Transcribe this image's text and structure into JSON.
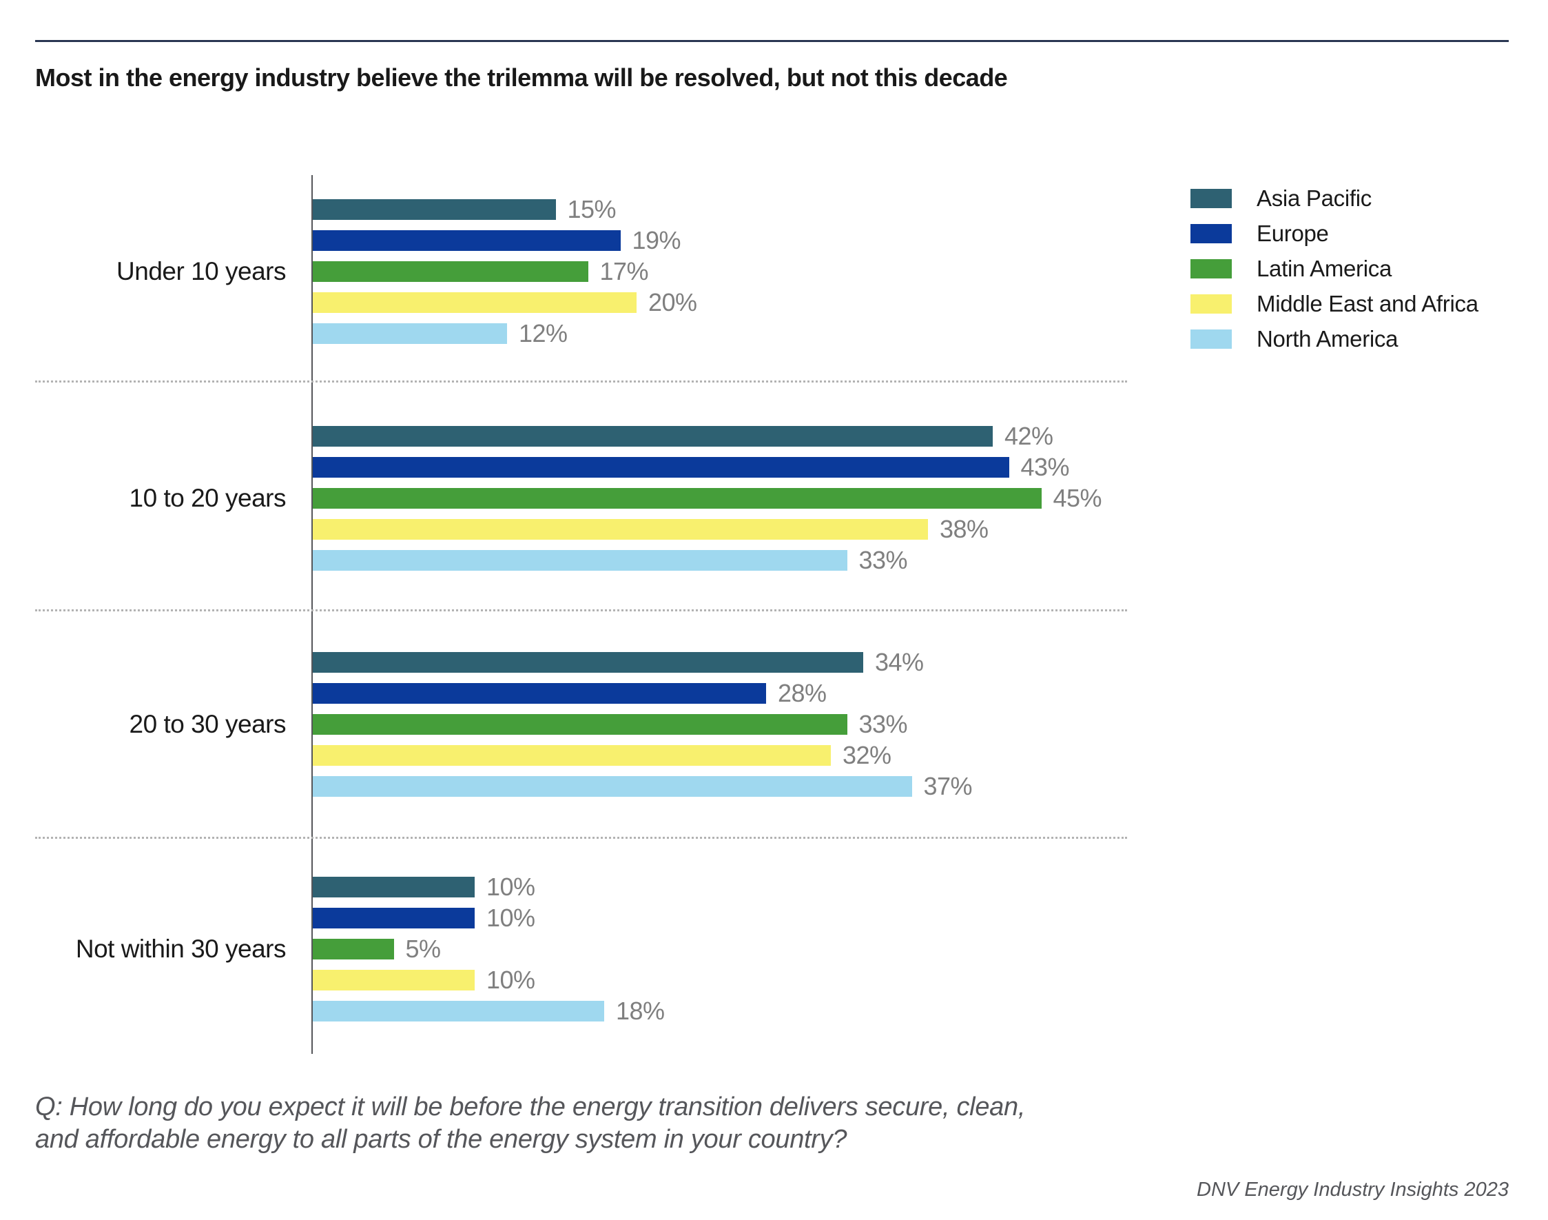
{
  "page": {
    "title": "Most in the energy industry believe the trilemma will be resolved, but not this decade",
    "question_line1": "Q: How long do you expect it will be before the energy transition delivers secure, clean,",
    "question_line2": "and affordable energy to all parts of the energy system in your country?",
    "source": "DNV Energy Industry Insights 2023"
  },
  "colors": {
    "top_rule": "#2a3753",
    "axis": "#55565a",
    "value_label": "#7f7f7f",
    "text": "#1a1a1a",
    "muted_text": "#55565a",
    "separator": "#b3b3b3"
  },
  "chart_data": {
    "type": "bar",
    "orientation": "horizontal",
    "title": "Most in the energy industry believe the trilemma will be resolved, but not this decade",
    "categories": [
      "Under 10 years",
      "10 to 20 years",
      "20 to 30 years",
      "Not within 30 years"
    ],
    "series": [
      {
        "name": "Asia Pacific",
        "color": "#2e6172",
        "values": [
          15,
          42,
          34,
          10
        ]
      },
      {
        "name": "Europe",
        "color": "#0b3a9b",
        "values": [
          19,
          43,
          28,
          10
        ]
      },
      {
        "name": "Latin America",
        "color": "#459e3a",
        "values": [
          17,
          45,
          33,
          5
        ]
      },
      {
        "name": "Middle East and Africa",
        "color": "#f8f06e",
        "values": [
          20,
          38,
          32,
          10
        ]
      },
      {
        "name": "North America",
        "color": "#9fd8ef",
        "values": [
          12,
          33,
          37,
          18
        ]
      }
    ],
    "value_suffix": "%",
    "xlim": [
      0,
      50
    ],
    "data_labels": true,
    "legend_position": "top-right",
    "grid": "dotted-separators-between-categories"
  }
}
